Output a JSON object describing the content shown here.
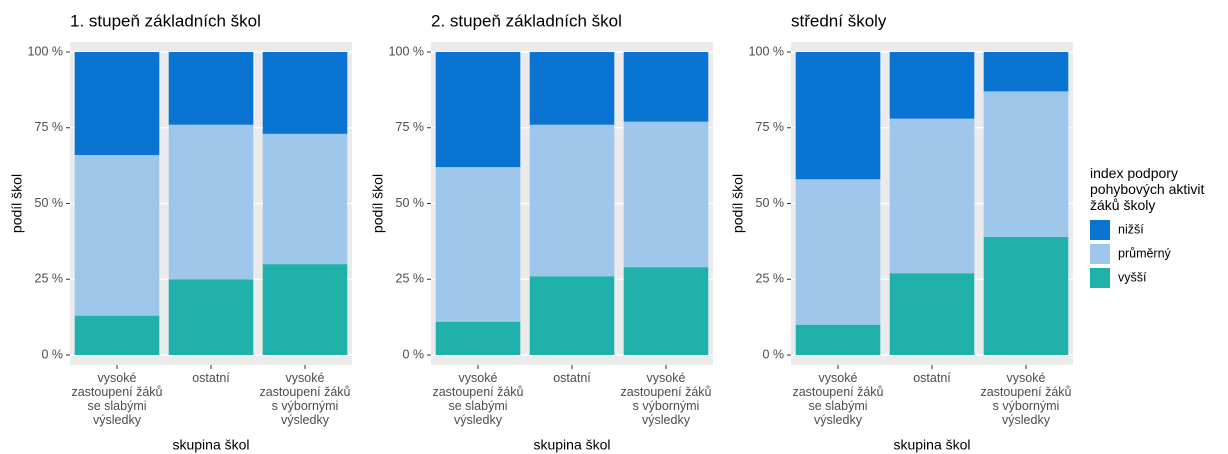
{
  "chart_data": [
    {
      "type": "bar",
      "stacked": true,
      "title": "1. stupeň základních škol",
      "xlabel": "skupina škol",
      "ylabel": "podíl škol",
      "categories": [
        "vysoké\nzastoupení žáků\nse slabými\nvýsledky",
        "ostatní",
        "vysoké\nzastoupení žáků\ns výbornými\nvýsledky"
      ],
      "series": [
        {
          "name": "nižší",
          "color": "#0a74d2",
          "values": [
            34,
            24,
            27
          ]
        },
        {
          "name": "průměrný",
          "color": "#9fc7eb",
          "values": [
            53,
            51,
            43
          ]
        },
        {
          "name": "vyšší",
          "color": "#20b2aa",
          "values": [
            13,
            25,
            30
          ]
        }
      ],
      "ylim": [
        -3.3,
        103.3
      ],
      "yticks": [
        {
          "value": 0,
          "label": "0 %"
        },
        {
          "value": 25,
          "label": "25 %"
        },
        {
          "value": 50,
          "label": "50 %"
        },
        {
          "value": 75,
          "label": "75 %"
        },
        {
          "value": 100,
          "label": "100 %"
        }
      ],
      "grid": true
    },
    {
      "type": "bar",
      "stacked": true,
      "title": "2. stupeň základních škol",
      "xlabel": "skupina škol",
      "ylabel": "podíl škol",
      "categories": [
        "vysoké\nzastoupení žáků\nse slabými\nvýsledky",
        "ostatní",
        "vysoké\nzastoupení žáků\ns výbornými\nvýsledky"
      ],
      "series": [
        {
          "name": "nižší",
          "color": "#0a74d2",
          "values": [
            38,
            24,
            23
          ]
        },
        {
          "name": "průměrný",
          "color": "#9fc7eb",
          "values": [
            51,
            50,
            48
          ]
        },
        {
          "name": "vyšší",
          "color": "#20b2aa",
          "values": [
            11,
            26,
            29
          ]
        }
      ],
      "ylim": [
        -3.3,
        103.3
      ],
      "yticks": [
        {
          "value": 0,
          "label": "0 %"
        },
        {
          "value": 25,
          "label": "25 %"
        },
        {
          "value": 50,
          "label": "50 %"
        },
        {
          "value": 75,
          "label": "75 %"
        },
        {
          "value": 100,
          "label": "100 %"
        }
      ],
      "grid": true
    },
    {
      "type": "bar",
      "stacked": true,
      "title": "střední školy",
      "xlabel": "skupina škol",
      "ylabel": "podíl škol",
      "categories": [
        "vysoké\nzastoupení žáků\nse slabými\nvýsledky",
        "ostatní",
        "vysoké\nzastoupení žáků\ns výbornými\nvýsledky"
      ],
      "series": [
        {
          "name": "nižší",
          "color": "#0a74d2",
          "values": [
            42,
            22,
            13
          ]
        },
        {
          "name": "průměrný",
          "color": "#9fc7eb",
          "values": [
            48,
            51,
            48
          ]
        },
        {
          "name": "vyšší",
          "color": "#20b2aa",
          "values": [
            10,
            27,
            39
          ]
        }
      ],
      "ylim": [
        -3.3,
        103.3
      ],
      "yticks": [
        {
          "value": 0,
          "label": "0 %"
        },
        {
          "value": 25,
          "label": "25 %"
        },
        {
          "value": 50,
          "label": "50 %"
        },
        {
          "value": 75,
          "label": "75 %"
        },
        {
          "value": 100,
          "label": "100 %"
        }
      ],
      "grid": true,
      "legend": {
        "title": "index podpory\npohybových aktivit\nžáků školy",
        "position": "right"
      }
    }
  ]
}
